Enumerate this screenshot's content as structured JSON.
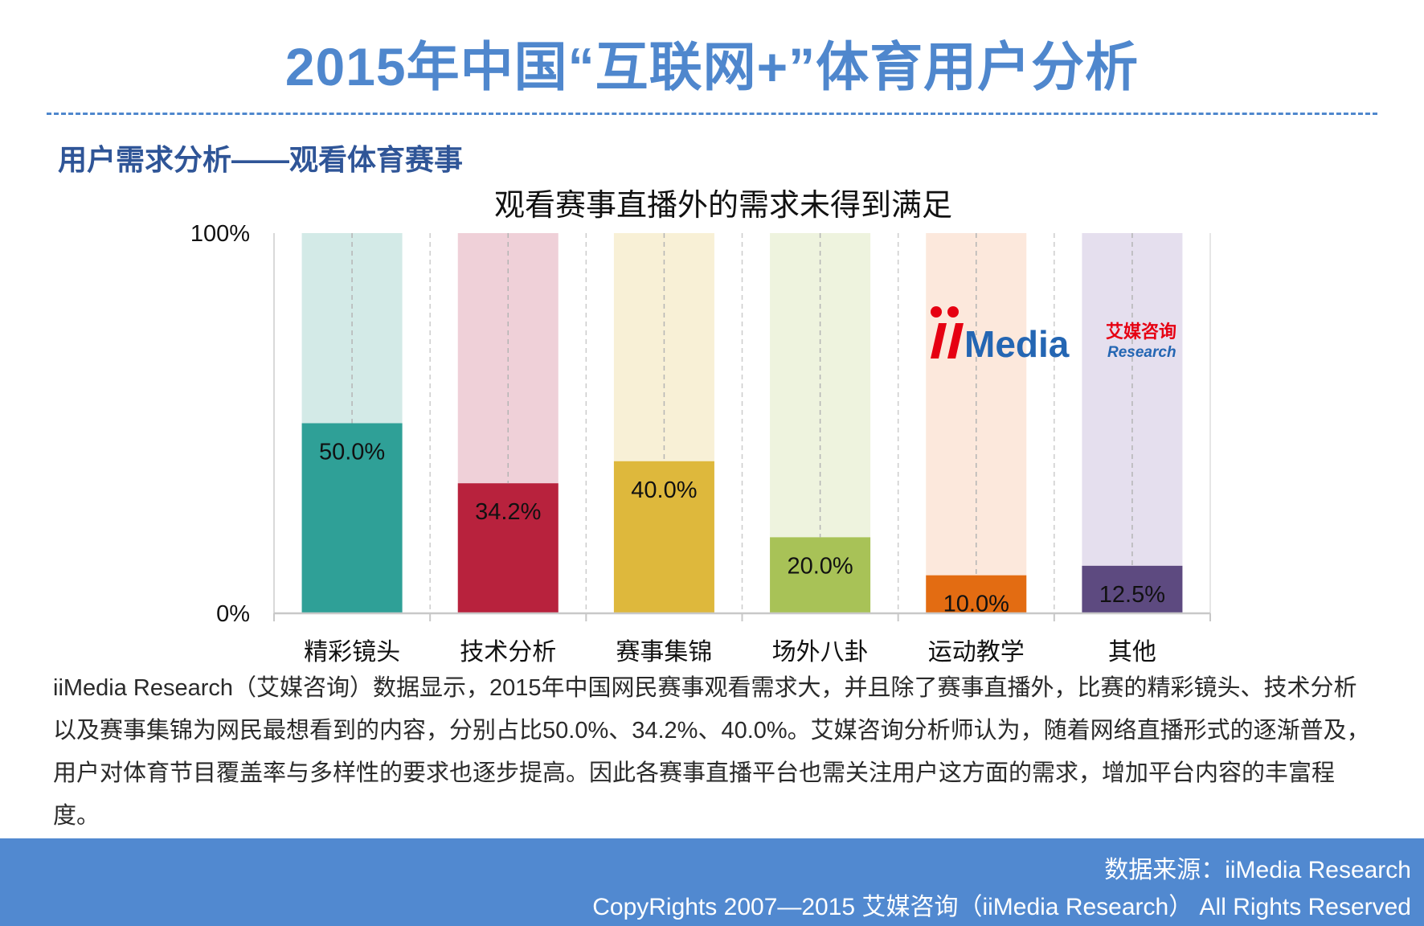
{
  "header": {
    "title": "2015年中国“互联网+”体育用户分析",
    "section_title": "用户需求分析——观看体育赛事"
  },
  "logo": {
    "brand": "iiMedia",
    "cn": "艾媒咨询",
    "en": "Research"
  },
  "chart_data": {
    "type": "bar",
    "title": "观看赛事直播外的需求未得到满足",
    "categories": [
      "精彩镜头",
      "技术分析",
      "赛事集锦",
      "场外八卦",
      "运动教学",
      "其他"
    ],
    "values": [
      50.0,
      34.2,
      40.0,
      20.0,
      10.0,
      12.5
    ],
    "value_labels": [
      "50.0%",
      "34.2%",
      "40.0%",
      "20.0%",
      "10.0%",
      "12.5%"
    ],
    "colors": [
      "#2fa097",
      "#b8223d",
      "#deb83c",
      "#a8c257",
      "#e36c12",
      "#5d4a80"
    ],
    "bg_colors": [
      "#d3eae7",
      "#efd0d8",
      "#f8f0d6",
      "#eef3de",
      "#fce8dc",
      "#e5dfee"
    ],
    "ylim": [
      0,
      100
    ],
    "ytick_labels": [
      "0%",
      "100%"
    ],
    "xlabel": "",
    "ylabel": "",
    "grid": false,
    "legend": "none"
  },
  "description": "iiMedia Research（艾媒咨询）数据显示，2015年中国网民赛事观看需求大，并且除了赛事直播外，比赛的精彩镜头、技术分析以及赛事集锦为网民最想看到的内容，分别占比50.0%、34.2%、40.0%。艾媒咨询分析师认为，随着网络直播形式的逐渐普及，用户对体育节目覆盖率与多样性的要求也逐步提高。因此各赛事直播平台也需关注用户这方面的需求，增加平台内容的丰富程度。",
  "footer": {
    "source": "数据来源：iiMedia Research",
    "copyright": "CopyRights 2007—2015 艾媒咨询（iiMedia Research） All Rights Reserved"
  }
}
